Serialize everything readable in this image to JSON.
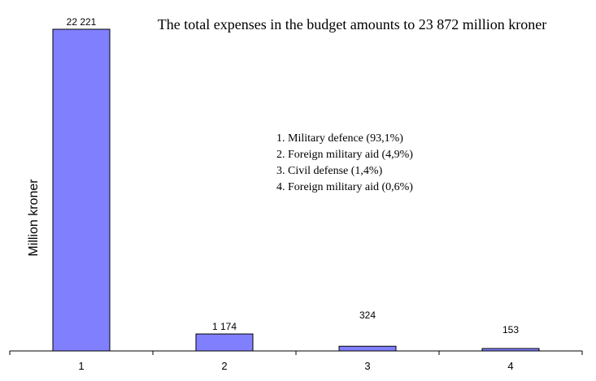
{
  "chart_data": {
    "type": "bar",
    "title": "The total expenses in the budget amounts to 23 872 million kroner",
    "xlabel": "",
    "ylabel": "Million kroner",
    "categories": [
      "1",
      "2",
      "3",
      "4"
    ],
    "values": [
      22221,
      1174,
      324,
      153
    ],
    "value_labels": [
      "22 221",
      "1 174",
      "324",
      "153"
    ],
    "ylim": [
      0,
      22221
    ],
    "grid": false,
    "legend_placement": "center-right",
    "legend_entries": [
      "1.  Military defence (93,1%)",
      "2.  Foreign military aid (4,9%)",
      "3.  Civil defense (1,4%)",
      "4.  Foreign military aid (0,6%)"
    ],
    "bar_color": "#8080ff"
  }
}
